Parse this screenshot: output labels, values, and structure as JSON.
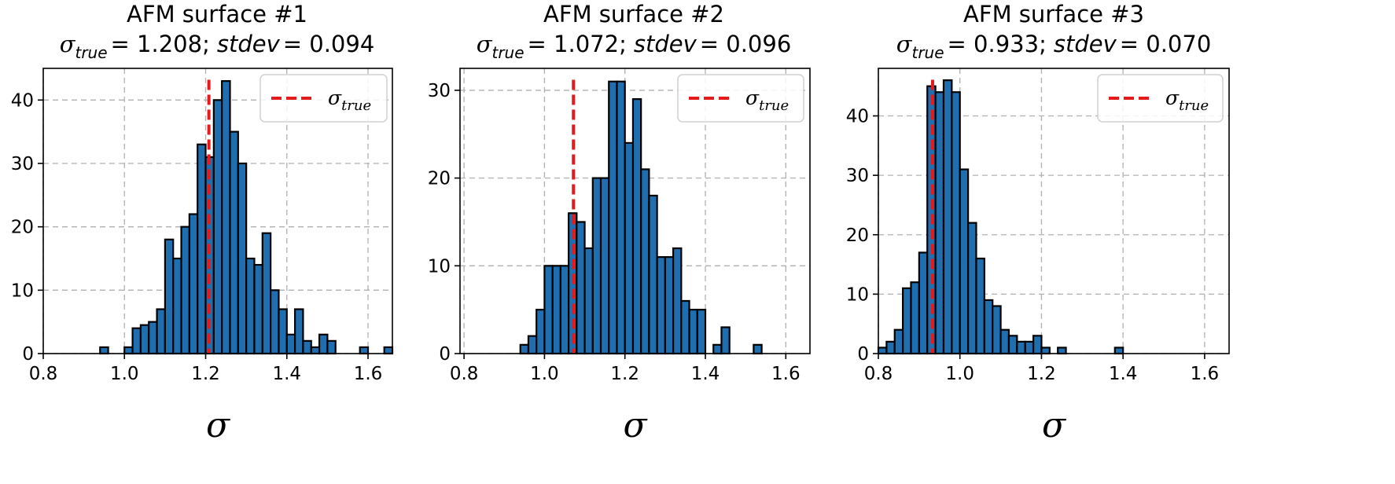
{
  "chart_data": [
    {
      "type": "bar",
      "title": "AFM surface #1",
      "subtitle": {
        "sigma_symbol": "σ",
        "sigma_subscript": "true",
        "sigma_value": "= 1.208;",
        "stdev_label": "stdev",
        "stdev_value": "= 0.094"
      },
      "xlabel": "σ",
      "ylabel": "",
      "xlim": [
        0.8,
        1.66
      ],
      "ylim": [
        0,
        45
      ],
      "xticks": [
        0.8,
        1.0,
        1.2,
        1.4,
        1.6
      ],
      "xtick_labels": [
        "0.8",
        "1.0",
        "1.2",
        "1.4",
        "1.6"
      ],
      "yticks": [
        0,
        10,
        20,
        30,
        40
      ],
      "ytick_labels": [
        "0",
        "10",
        "20",
        "30",
        "40"
      ],
      "grid": true,
      "bin_width": 0.02,
      "bins": [
        {
          "x": 0.95,
          "count": 1
        },
        {
          "x": 0.97,
          "count": 0
        },
        {
          "x": 0.99,
          "count": 0
        },
        {
          "x": 1.01,
          "count": 1
        },
        {
          "x": 1.03,
          "count": 4
        },
        {
          "x": 1.05,
          "count": 4.5
        },
        {
          "x": 1.07,
          "count": 5
        },
        {
          "x": 1.09,
          "count": 7
        },
        {
          "x": 1.11,
          "count": 18
        },
        {
          "x": 1.13,
          "count": 15
        },
        {
          "x": 1.15,
          "count": 20
        },
        {
          "x": 1.17,
          "count": 22
        },
        {
          "x": 1.19,
          "count": 33
        },
        {
          "x": 1.21,
          "count": 31
        },
        {
          "x": 1.23,
          "count": 40
        },
        {
          "x": 1.25,
          "count": 43
        },
        {
          "x": 1.27,
          "count": 35
        },
        {
          "x": 1.29,
          "count": 30
        },
        {
          "x": 1.31,
          "count": 15
        },
        {
          "x": 1.33,
          "count": 14
        },
        {
          "x": 1.35,
          "count": 19
        },
        {
          "x": 1.37,
          "count": 10
        },
        {
          "x": 1.39,
          "count": 7
        },
        {
          "x": 1.41,
          "count": 3
        },
        {
          "x": 1.43,
          "count": 7
        },
        {
          "x": 1.45,
          "count": 2
        },
        {
          "x": 1.47,
          "count": 1
        },
        {
          "x": 1.49,
          "count": 3
        },
        {
          "x": 1.51,
          "count": 2
        },
        {
          "x": 1.53,
          "count": 0
        },
        {
          "x": 1.55,
          "count": 0
        },
        {
          "x": 1.57,
          "count": 0
        },
        {
          "x": 1.59,
          "count": 1
        },
        {
          "x": 1.61,
          "count": 0
        },
        {
          "x": 1.63,
          "count": 0
        },
        {
          "x": 1.65,
          "count": 1
        }
      ],
      "sigma_true": 1.208,
      "legend": {
        "symbol": "σ",
        "subscript": "true",
        "placement": "top-right"
      }
    },
    {
      "type": "bar",
      "title": "AFM surface #2",
      "subtitle": {
        "sigma_symbol": "σ",
        "sigma_subscript": "true",
        "sigma_value": "= 1.072;",
        "stdev_label": "stdev",
        "stdev_value": "= 0.096"
      },
      "xlabel": "σ",
      "ylabel": "",
      "xlim": [
        0.79,
        1.66
      ],
      "ylim": [
        0,
        32.5
      ],
      "xticks": [
        0.8,
        1.0,
        1.2,
        1.4,
        1.6
      ],
      "xtick_labels": [
        "0.8",
        "1.0",
        "1.2",
        "1.4",
        "1.6"
      ],
      "yticks": [
        0,
        10,
        20,
        30
      ],
      "ytick_labels": [
        "0",
        "10",
        "20",
        "30"
      ],
      "grid": true,
      "bin_width": 0.02,
      "bins": [
        {
          "x": 0.95,
          "count": 1
        },
        {
          "x": 0.97,
          "count": 2
        },
        {
          "x": 0.99,
          "count": 5
        },
        {
          "x": 1.01,
          "count": 10
        },
        {
          "x": 1.03,
          "count": 10
        },
        {
          "x": 1.05,
          "count": 10
        },
        {
          "x": 1.07,
          "count": 16
        },
        {
          "x": 1.09,
          "count": 15
        },
        {
          "x": 1.11,
          "count": 12
        },
        {
          "x": 1.13,
          "count": 20
        },
        {
          "x": 1.15,
          "count": 20
        },
        {
          "x": 1.17,
          "count": 31
        },
        {
          "x": 1.19,
          "count": 31
        },
        {
          "x": 1.21,
          "count": 24
        },
        {
          "x": 1.23,
          "count": 29
        },
        {
          "x": 1.25,
          "count": 21
        },
        {
          "x": 1.27,
          "count": 18
        },
        {
          "x": 1.29,
          "count": 11
        },
        {
          "x": 1.31,
          "count": 11
        },
        {
          "x": 1.33,
          "count": 12
        },
        {
          "x": 1.35,
          "count": 6
        },
        {
          "x": 1.37,
          "count": 5
        },
        {
          "x": 1.39,
          "count": 5
        },
        {
          "x": 1.41,
          "count": 0
        },
        {
          "x": 1.43,
          "count": 1
        },
        {
          "x": 1.45,
          "count": 3
        },
        {
          "x": 1.47,
          "count": 0
        },
        {
          "x": 1.49,
          "count": 0
        },
        {
          "x": 1.51,
          "count": 0
        },
        {
          "x": 1.53,
          "count": 1
        }
      ],
      "sigma_true": 1.072,
      "legend": {
        "symbol": "σ",
        "subscript": "true",
        "placement": "top-right"
      }
    },
    {
      "type": "bar",
      "title": "AFM surface #3",
      "subtitle": {
        "sigma_symbol": "σ",
        "sigma_subscript": "true",
        "sigma_value": "= 0.933;",
        "stdev_label": "stdev",
        "stdev_value": "= 0.070"
      },
      "xlabel": "σ",
      "ylabel": "",
      "xlim": [
        0.8,
        1.66
      ],
      "ylim": [
        0,
        48
      ],
      "xticks": [
        0.8,
        1.0,
        1.2,
        1.4,
        1.6
      ],
      "xtick_labels": [
        "0.8",
        "1.0",
        "1.2",
        "1.4",
        "1.6"
      ],
      "yticks": [
        0,
        10,
        20,
        30,
        40
      ],
      "ytick_labels": [
        "0",
        "10",
        "20",
        "30",
        "40"
      ],
      "grid": true,
      "bin_width": 0.02,
      "bins": [
        {
          "x": 0.81,
          "count": 1
        },
        {
          "x": 0.83,
          "count": 2
        },
        {
          "x": 0.85,
          "count": 4
        },
        {
          "x": 0.87,
          "count": 11
        },
        {
          "x": 0.89,
          "count": 12
        },
        {
          "x": 0.91,
          "count": 17
        },
        {
          "x": 0.93,
          "count": 45
        },
        {
          "x": 0.95,
          "count": 44
        },
        {
          "x": 0.97,
          "count": 46
        },
        {
          "x": 0.99,
          "count": 44
        },
        {
          "x": 1.01,
          "count": 31
        },
        {
          "x": 1.03,
          "count": 22
        },
        {
          "x": 1.05,
          "count": 16
        },
        {
          "x": 1.07,
          "count": 9
        },
        {
          "x": 1.09,
          "count": 8
        },
        {
          "x": 1.11,
          "count": 4
        },
        {
          "x": 1.13,
          "count": 3
        },
        {
          "x": 1.15,
          "count": 2
        },
        {
          "x": 1.17,
          "count": 2
        },
        {
          "x": 1.19,
          "count": 3
        },
        {
          "x": 1.21,
          "count": 1
        },
        {
          "x": 1.23,
          "count": 0
        },
        {
          "x": 1.25,
          "count": 1
        },
        {
          "x": 1.27,
          "count": 0
        },
        {
          "x": 1.29,
          "count": 0
        },
        {
          "x": 1.31,
          "count": 0
        },
        {
          "x": 1.33,
          "count": 0
        },
        {
          "x": 1.35,
          "count": 0
        },
        {
          "x": 1.37,
          "count": 0
        },
        {
          "x": 1.39,
          "count": 1
        }
      ],
      "sigma_true": 0.933,
      "legend": {
        "symbol": "σ",
        "subscript": "true",
        "placement": "top-right"
      }
    }
  ],
  "colors": {
    "bar_fill": "#1f6fb0",
    "bar_edge": "#000000",
    "sigma_true_line": "#e41a1c",
    "grid": "#b0b0b0",
    "legend_border": "#d0d0d0"
  }
}
